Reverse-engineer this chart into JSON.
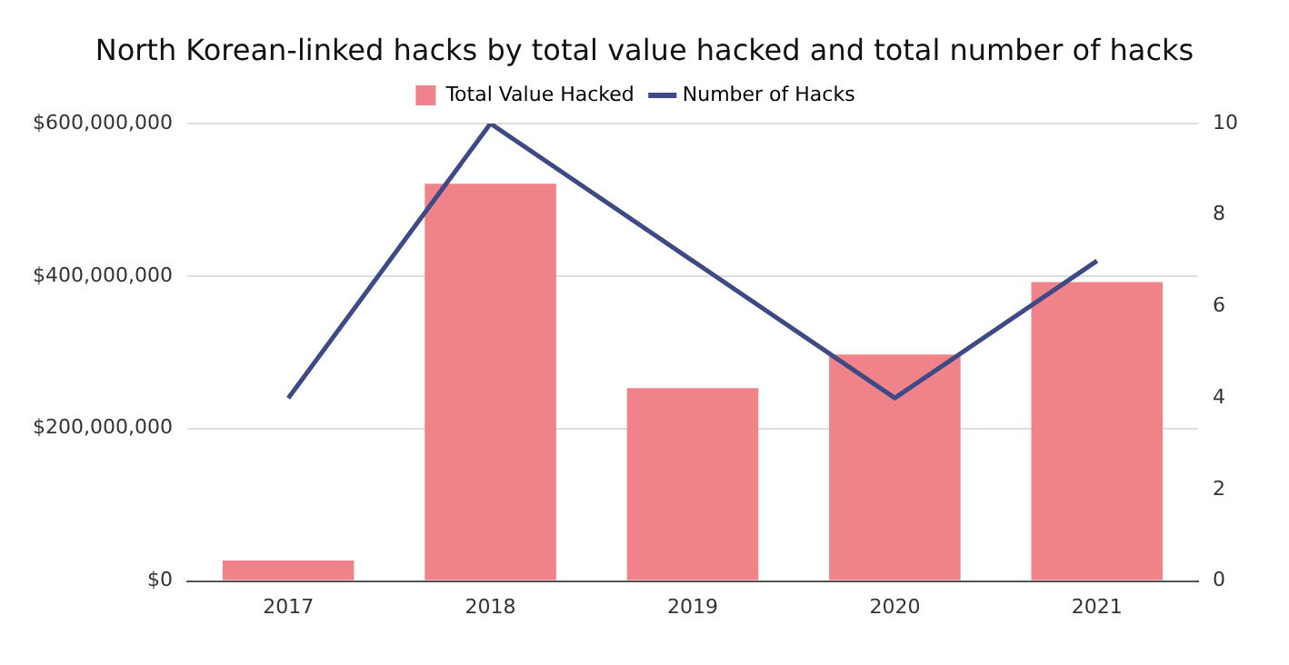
{
  "chart_data": {
    "type": "bar",
    "title": "North Korean-linked hacks by total value hacked and total number of hacks",
    "categories": [
      "2017",
      "2018",
      "2019",
      "2020",
      "2021"
    ],
    "series": [
      {
        "name": "Total Value Hacked",
        "color": "#f08389",
        "values": [
          27000000,
          521000000,
          253000000,
          297000000,
          392000000
        ]
      },
      {
        "name": "Number of Hacks",
        "type": "line",
        "axis": "y2",
        "color": "#3d4a85",
        "values": [
          4,
          10,
          7,
          4,
          7
        ]
      }
    ],
    "ylim": [
      0,
      600000000
    ],
    "yticks": [
      {
        "value": 0,
        "label": "$0"
      },
      {
        "value": 200000000,
        "label": "$200,000,000"
      },
      {
        "value": 400000000,
        "label": "$400,000,000"
      },
      {
        "value": 600000000,
        "label": "$600,000,000"
      }
    ],
    "y2lim": [
      0,
      10
    ],
    "y2ticks": [
      0,
      2,
      4,
      6,
      8,
      10
    ],
    "grid": "y",
    "legend": "top",
    "marker": "none"
  }
}
